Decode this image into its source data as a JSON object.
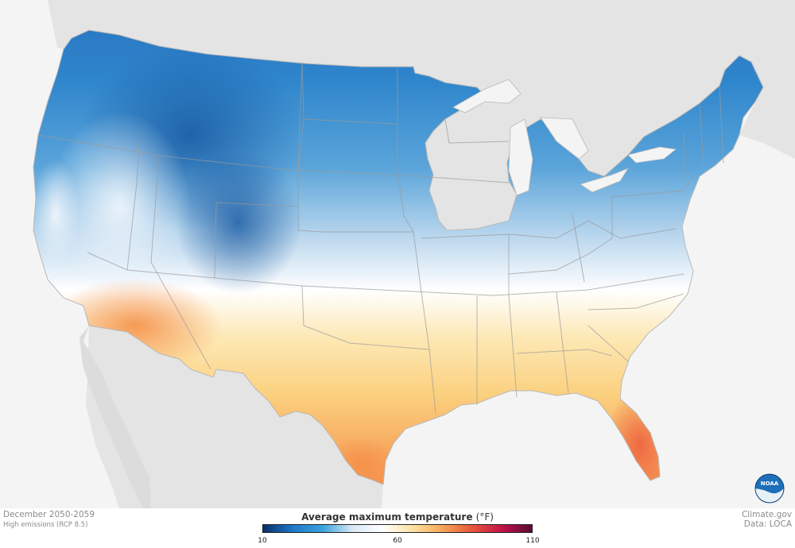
{
  "map": {
    "period": "December 2050-2059",
    "scenario": "High emissions (RCP 8.5)",
    "credit_source": "Climate.gov",
    "credit_data": "Data: LOCA",
    "logo_text": "NOAA"
  },
  "legend": {
    "title": "Average maximum temperature",
    "unit": "(°F)",
    "min": 10,
    "mid": 60,
    "max": 110,
    "ticks": [
      "10",
      "60",
      "110"
    ],
    "colors": [
      "#08306b",
      "#1f78c8",
      "#3aa3dc",
      "#dbe9f6",
      "#ffffff",
      "#fde3a3",
      "#f7a55a",
      "#e8563a",
      "#c2124a",
      "#5a0a35"
    ]
  }
}
